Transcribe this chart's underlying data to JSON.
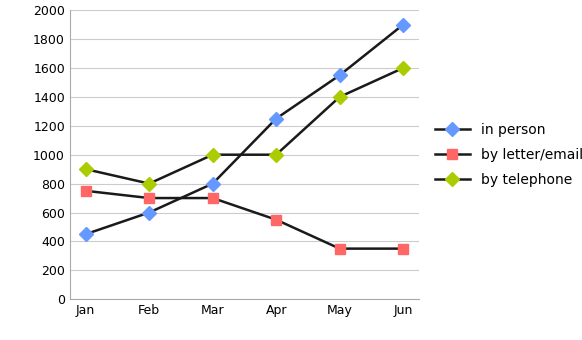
{
  "months": [
    "Jan",
    "Feb",
    "Mar",
    "Apr",
    "May",
    "Jun"
  ],
  "in_person": [
    450,
    600,
    800,
    1250,
    1550,
    1900
  ],
  "by_letter_email": [
    750,
    700,
    700,
    550,
    350,
    350
  ],
  "by_telephone": [
    900,
    800,
    1000,
    1000,
    1400,
    1600
  ],
  "line_color": "#1a1a1a",
  "marker_colors": {
    "in_person": "#6699ff",
    "by_letter_email": "#ff6666",
    "by_telephone": "#aacc00"
  },
  "legend_labels": [
    "in person",
    "by letter/email",
    "by telephone"
  ],
  "ylim": [
    0,
    2000
  ],
  "yticks": [
    0,
    200,
    400,
    600,
    800,
    1000,
    1200,
    1400,
    1600,
    1800,
    2000
  ],
  "background_color": "#ffffff",
  "marker_in_person": "D",
  "marker_letter": "s",
  "marker_telephone": "D",
  "linewidth": 1.8,
  "markersize": 7,
  "tick_fontsize": 9,
  "legend_fontsize": 10
}
